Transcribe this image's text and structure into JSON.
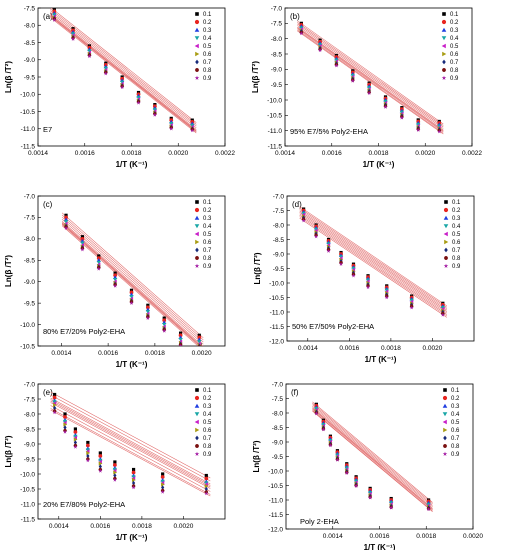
{
  "figure": {
    "legend_labels": [
      "0.1",
      "0.2",
      "0.3",
      "0.4",
      "0.5",
      "0.6",
      "0.7",
      "0.8",
      "0.9"
    ],
    "series_colors": [
      "#000000",
      "#e8241f",
      "#1f3de0",
      "#18a6a6",
      "#c81ec8",
      "#a89c12",
      "#172a7a",
      "#7a1010",
      "#a31aa3"
    ],
    "series_markers": [
      "square",
      "circle",
      "triangle-up",
      "triangle-down",
      "triangle-left",
      "triangle-right",
      "diamond",
      "hexagon",
      "star"
    ],
    "fit_line_color": "#e06666"
  },
  "chart_data": [
    {
      "panel": "(a)",
      "type": "scatter",
      "annotation": "E7",
      "xlabel": "1/T (K⁻¹)",
      "ylabel": "Ln(β /T²)",
      "xlim": [
        0.0014,
        0.0022
      ],
      "ylim": [
        -11.5,
        -7.5
      ],
      "xticks": [
        "0.0014",
        "0.0016",
        "0.0018",
        "0.0020",
        "0.0022"
      ],
      "yticks": [
        "-7.5",
        "-8.0",
        "-8.5",
        "-9.0",
        "-9.5",
        "-10.0",
        "-10.5",
        "-11.0",
        "-11.5"
      ],
      "legend": "top-right",
      "x": [
        0.00147,
        0.00155,
        0.00162,
        0.00169,
        0.00176,
        0.00183,
        0.0019,
        0.00197,
        0.00206
      ],
      "series": [
        {
          "name": "0.1",
          "values": [
            -7.55,
            -8.1,
            -8.6,
            -9.1,
            -9.5,
            -9.95,
            -10.3,
            -10.7,
            -10.75
          ]
        },
        {
          "name": "0.2",
          "values": [
            -7.6,
            -8.15,
            -8.65,
            -9.15,
            -9.55,
            -10.0,
            -10.35,
            -10.75,
            -10.8
          ]
        },
        {
          "name": "0.3",
          "values": [
            -7.65,
            -8.2,
            -8.7,
            -9.2,
            -9.6,
            -10.05,
            -10.4,
            -10.8,
            -10.85
          ]
        },
        {
          "name": "0.4",
          "values": [
            -7.7,
            -8.25,
            -8.75,
            -9.25,
            -9.65,
            -10.1,
            -10.45,
            -10.85,
            -10.9
          ]
        },
        {
          "name": "0.5",
          "values": [
            -7.75,
            -8.3,
            -8.8,
            -9.3,
            -9.7,
            -10.15,
            -10.5,
            -10.9,
            -10.95
          ]
        },
        {
          "name": "0.6",
          "values": [
            -7.78,
            -8.33,
            -8.83,
            -9.33,
            -9.73,
            -10.18,
            -10.53,
            -10.93,
            -10.98
          ]
        },
        {
          "name": "0.7",
          "values": [
            -7.8,
            -8.35,
            -8.85,
            -9.35,
            -9.75,
            -10.2,
            -10.55,
            -10.95,
            -11.0
          ]
        },
        {
          "name": "0.8",
          "values": [
            -7.82,
            -8.37,
            -8.87,
            -9.37,
            -9.77,
            -10.22,
            -10.57,
            -10.97,
            -11.02
          ]
        },
        {
          "name": "0.9",
          "values": [
            -7.85,
            -8.4,
            -8.9,
            -9.4,
            -9.8,
            -10.25,
            -10.6,
            -11.0,
            -11.05
          ]
        }
      ]
    },
    {
      "panel": "(b)",
      "type": "scatter",
      "annotation": "95% E7/5% Poly2-EHA",
      "xlabel": "1/T (K⁻¹)",
      "ylabel": "Ln(β /T²)",
      "xlim": [
        0.0014,
        0.0022
      ],
      "ylim": [
        -11.5,
        -7.0
      ],
      "xticks": [
        "0.0014",
        "0.0016",
        "0.0018",
        "0.0020",
        "0.0022"
      ],
      "yticks": [
        "-7.0",
        "-7.5",
        "-8.0",
        "-8.5",
        "-9.0",
        "-9.5",
        "-10.0",
        "-10.5",
        "-11.0",
        "-11.5"
      ],
      "legend": "top-right",
      "x": [
        0.00147,
        0.00155,
        0.00162,
        0.00169,
        0.00176,
        0.00183,
        0.0019,
        0.00197,
        0.00206
      ],
      "series": [
        {
          "name": "0.1",
          "values": [
            -7.5,
            -8.05,
            -8.55,
            -9.05,
            -9.45,
            -9.9,
            -10.25,
            -10.65,
            -10.7
          ]
        },
        {
          "name": "0.2",
          "values": [
            -7.55,
            -8.1,
            -8.6,
            -9.1,
            -9.5,
            -9.95,
            -10.3,
            -10.7,
            -10.75
          ]
        },
        {
          "name": "0.3",
          "values": [
            -7.6,
            -8.15,
            -8.65,
            -9.15,
            -9.55,
            -10.0,
            -10.35,
            -10.75,
            -10.8
          ]
        },
        {
          "name": "0.4",
          "values": [
            -7.65,
            -8.2,
            -8.7,
            -9.2,
            -9.6,
            -10.05,
            -10.4,
            -10.8,
            -10.85
          ]
        },
        {
          "name": "0.5",
          "values": [
            -7.7,
            -8.25,
            -8.75,
            -9.25,
            -9.65,
            -10.1,
            -10.45,
            -10.85,
            -10.9
          ]
        },
        {
          "name": "0.6",
          "values": [
            -7.73,
            -8.28,
            -8.78,
            -9.28,
            -9.68,
            -10.13,
            -10.48,
            -10.88,
            -10.93
          ]
        },
        {
          "name": "0.7",
          "values": [
            -7.76,
            -8.31,
            -8.81,
            -9.31,
            -9.71,
            -10.16,
            -10.51,
            -10.91,
            -10.96
          ]
        },
        {
          "name": "0.8",
          "values": [
            -7.8,
            -8.35,
            -8.85,
            -9.35,
            -9.75,
            -10.2,
            -10.55,
            -10.95,
            -11.0
          ]
        },
        {
          "name": "0.9",
          "values": [
            -7.83,
            -8.38,
            -8.88,
            -9.38,
            -9.78,
            -10.23,
            -10.58,
            -10.98,
            -11.03
          ]
        }
      ]
    },
    {
      "panel": "(c)",
      "type": "scatter",
      "annotation": "80% E7/20% Poly2-EHA",
      "xlabel": "1/T (K⁻¹)",
      "ylabel": "Ln(β /T²)",
      "xlim": [
        0.0013,
        0.0021
      ],
      "ylim": [
        -10.5,
        -7.0
      ],
      "xticks": [
        "0.0014",
        "0.0016",
        "0.0018",
        "0.0020"
      ],
      "yticks": [
        "-7.0",
        "-7.5",
        "-8.0",
        "-8.5",
        "-9.0",
        "-9.5",
        "-10.0",
        "-10.5"
      ],
      "legend": "top-right",
      "x": [
        0.00142,
        0.00149,
        0.00156,
        0.00163,
        0.0017,
        0.00177,
        0.00184,
        0.00191,
        0.00199
      ],
      "series": [
        {
          "name": "0.1",
          "values": [
            -7.45,
            -7.95,
            -8.4,
            -8.8,
            -9.2,
            -9.55,
            -9.85,
            -10.2,
            -10.25
          ]
        },
        {
          "name": "0.2",
          "values": [
            -7.5,
            -8.0,
            -8.45,
            -8.85,
            -9.25,
            -9.6,
            -9.9,
            -10.25,
            -10.3
          ]
        },
        {
          "name": "0.3",
          "values": [
            -7.55,
            -8.05,
            -8.5,
            -8.9,
            -9.3,
            -9.65,
            -9.95,
            -10.3,
            -10.35
          ]
        },
        {
          "name": "0.4",
          "values": [
            -7.6,
            -8.1,
            -8.55,
            -8.95,
            -9.35,
            -9.7,
            -10.0,
            -10.35,
            -10.4
          ]
        },
        {
          "name": "0.5",
          "values": [
            -7.65,
            -8.15,
            -8.6,
            -9.0,
            -9.4,
            -9.75,
            -10.05,
            -10.4,
            -10.45
          ]
        },
        {
          "name": "0.6",
          "values": [
            -7.68,
            -8.18,
            -8.63,
            -9.03,
            -9.43,
            -9.78,
            -10.08,
            -10.43,
            -10.48
          ]
        },
        {
          "name": "0.7",
          "values": [
            -7.7,
            -8.2,
            -8.65,
            -9.05,
            -9.45,
            -9.8,
            -10.1,
            -10.45,
            -10.5
          ]
        },
        {
          "name": "0.8",
          "values": [
            -7.72,
            -8.22,
            -8.67,
            -9.07,
            -9.47,
            -9.82,
            -10.12,
            -10.47,
            -10.52
          ]
        },
        {
          "name": "0.9",
          "values": [
            -7.75,
            -8.25,
            -8.7,
            -9.1,
            -9.5,
            -9.85,
            -10.15,
            -10.5,
            -10.55
          ]
        }
      ]
    },
    {
      "panel": "(d)",
      "type": "scatter",
      "annotation": "50% E7/50% Poly2-EHA",
      "xlabel": "1/T (K⁻¹)",
      "ylabel": "Ln(β /T²)",
      "xlim": [
        0.0013,
        0.0022
      ],
      "ylim": [
        -12.0,
        -7.0
      ],
      "xticks": [
        "0.0014",
        "0.0016",
        "0.0018",
        "0.0020"
      ],
      "yticks": [
        "-7.0",
        "-7.5",
        "-8.0",
        "-8.5",
        "-9.0",
        "-9.5",
        "-10.0",
        "-10.5",
        "-11.0",
        "-11.5",
        "-12.0"
      ],
      "legend": "top-right",
      "x": [
        0.00138,
        0.00144,
        0.0015,
        0.00156,
        0.00162,
        0.00169,
        0.00178,
        0.0019,
        0.00205
      ],
      "series": [
        {
          "name": "0.1",
          "values": [
            -7.45,
            -8.0,
            -8.5,
            -8.95,
            -9.35,
            -9.75,
            -10.1,
            -10.45,
            -10.7
          ]
        },
        {
          "name": "0.2",
          "values": [
            -7.5,
            -8.05,
            -8.55,
            -9.0,
            -9.4,
            -9.8,
            -10.15,
            -10.5,
            -10.75
          ]
        },
        {
          "name": "0.3",
          "values": [
            -7.55,
            -8.1,
            -8.6,
            -9.05,
            -9.45,
            -9.85,
            -10.2,
            -10.55,
            -10.8
          ]
        },
        {
          "name": "0.4",
          "values": [
            -7.6,
            -8.15,
            -8.65,
            -9.1,
            -9.5,
            -9.9,
            -10.25,
            -10.6,
            -10.85
          ]
        },
        {
          "name": "0.5",
          "values": [
            -7.65,
            -8.2,
            -8.7,
            -9.15,
            -9.55,
            -9.95,
            -10.3,
            -10.65,
            -10.9
          ]
        },
        {
          "name": "0.6",
          "values": [
            -7.7,
            -8.25,
            -8.75,
            -9.2,
            -9.6,
            -10.0,
            -10.35,
            -10.7,
            -10.95
          ]
        },
        {
          "name": "0.7",
          "values": [
            -7.75,
            -8.3,
            -8.8,
            -9.25,
            -9.65,
            -10.05,
            -10.4,
            -10.75,
            -11.0
          ]
        },
        {
          "name": "0.8",
          "values": [
            -7.8,
            -8.35,
            -8.85,
            -9.3,
            -9.7,
            -10.1,
            -10.45,
            -10.8,
            -11.05
          ]
        },
        {
          "name": "0.9",
          "values": [
            -7.85,
            -8.4,
            -8.9,
            -9.35,
            -9.75,
            -10.15,
            -10.5,
            -10.85,
            -11.1
          ]
        }
      ]
    },
    {
      "panel": "(e)",
      "type": "scatter",
      "annotation": "20% E7/80% Poly2-EHA",
      "xlabel": "1/T (K⁻¹)",
      "ylabel": "Ln(β /T²)",
      "xlim": [
        0.0013,
        0.0022
      ],
      "ylim": [
        -11.5,
        -7.0
      ],
      "xticks": [
        "0.0014",
        "0.0016",
        "0.0018",
        "0.0020"
      ],
      "yticks": [
        "-7.0",
        "-7.5",
        "-8.0",
        "-8.5",
        "-9.0",
        "-9.5",
        "-10.0",
        "-10.5",
        "-11.0",
        "-11.5"
      ],
      "legend": "top-right",
      "x": [
        0.00138,
        0.00143,
        0.00148,
        0.00154,
        0.0016,
        0.00167,
        0.00176,
        0.0019,
        0.00211
      ],
      "series": [
        {
          "name": "0.1",
          "values": [
            -7.35,
            -8.0,
            -8.5,
            -8.95,
            -9.3,
            -9.6,
            -9.85,
            -10.0,
            -10.05
          ]
        },
        {
          "name": "0.2",
          "values": [
            -7.45,
            -8.1,
            -8.6,
            -9.05,
            -9.4,
            -9.7,
            -9.95,
            -10.1,
            -10.15
          ]
        },
        {
          "name": "0.3",
          "values": [
            -7.55,
            -8.2,
            -8.7,
            -9.15,
            -9.5,
            -9.8,
            -10.05,
            -10.2,
            -10.25
          ]
        },
        {
          "name": "0.4",
          "values": [
            -7.6,
            -8.25,
            -8.75,
            -9.2,
            -9.55,
            -9.85,
            -10.1,
            -10.25,
            -10.3
          ]
        },
        {
          "name": "0.5",
          "values": [
            -7.65,
            -8.3,
            -8.8,
            -9.25,
            -9.6,
            -9.9,
            -10.15,
            -10.3,
            -10.35
          ]
        },
        {
          "name": "0.6",
          "values": [
            -7.7,
            -8.35,
            -8.85,
            -9.3,
            -9.65,
            -9.95,
            -10.2,
            -10.35,
            -10.4
          ]
        },
        {
          "name": "0.7",
          "values": [
            -7.8,
            -8.45,
            -8.95,
            -9.4,
            -9.75,
            -10.05,
            -10.3,
            -10.45,
            -10.5
          ]
        },
        {
          "name": "0.8",
          "values": [
            -7.9,
            -8.55,
            -9.05,
            -9.5,
            -9.85,
            -10.15,
            -10.4,
            -10.55,
            -10.6
          ]
        },
        {
          "name": "0.9",
          "values": [
            -7.95,
            -8.6,
            -9.1,
            -9.55,
            -9.9,
            -10.2,
            -10.45,
            -10.6,
            -10.65
          ]
        }
      ]
    },
    {
      "panel": "(f)",
      "type": "scatter",
      "annotation": "Poly 2-EHA",
      "xlabel": "1/T (K⁻¹)",
      "ylabel": "Ln(β /T²)",
      "xlim": [
        0.0012,
        0.002
      ],
      "ylim": [
        -12.0,
        -7.0
      ],
      "xticks": [
        "0.0014",
        "0.0016",
        "0.0018",
        "0.0020"
      ],
      "yticks": [
        "-7.0",
        "-7.5",
        "-8.0",
        "-8.5",
        "-9.0",
        "-9.5",
        "-10.0",
        "-10.5",
        "-11.0",
        "-11.5",
        "-12.0"
      ],
      "legend": "top-right",
      "x": [
        0.00133,
        0.00136,
        0.00139,
        0.00142,
        0.00146,
        0.0015,
        0.00156,
        0.00165,
        0.00181
      ],
      "series": [
        {
          "name": "0.1",
          "values": [
            -7.7,
            -8.25,
            -8.8,
            -9.3,
            -9.75,
            -10.2,
            -10.6,
            -10.95,
            -11.0
          ]
        },
        {
          "name": "0.2",
          "values": [
            -7.75,
            -8.3,
            -8.85,
            -9.35,
            -9.8,
            -10.25,
            -10.65,
            -11.0,
            -11.05
          ]
        },
        {
          "name": "0.3",
          "values": [
            -7.8,
            -8.35,
            -8.9,
            -9.4,
            -9.85,
            -10.3,
            -10.7,
            -11.05,
            -11.1
          ]
        },
        {
          "name": "0.4",
          "values": [
            -7.85,
            -8.4,
            -8.95,
            -9.45,
            -9.9,
            -10.35,
            -10.75,
            -11.1,
            -11.15
          ]
        },
        {
          "name": "0.5",
          "values": [
            -7.9,
            -8.45,
            -9.0,
            -9.5,
            -9.95,
            -10.4,
            -10.8,
            -11.15,
            -11.2
          ]
        },
        {
          "name": "0.6",
          "values": [
            -7.93,
            -8.48,
            -9.03,
            -9.53,
            -9.98,
            -10.43,
            -10.83,
            -11.18,
            -11.23
          ]
        },
        {
          "name": "0.7",
          "values": [
            -7.96,
            -8.51,
            -9.06,
            -9.56,
            -10.01,
            -10.46,
            -10.86,
            -11.21,
            -11.26
          ]
        },
        {
          "name": "0.8",
          "values": [
            -8.0,
            -8.55,
            -9.1,
            -9.6,
            -10.05,
            -10.5,
            -10.9,
            -11.25,
            -11.3
          ]
        },
        {
          "name": "0.9",
          "values": [
            -8.02,
            -8.57,
            -9.12,
            -9.62,
            -10.07,
            -10.52,
            -10.92,
            -11.27,
            -11.32
          ]
        }
      ]
    }
  ]
}
